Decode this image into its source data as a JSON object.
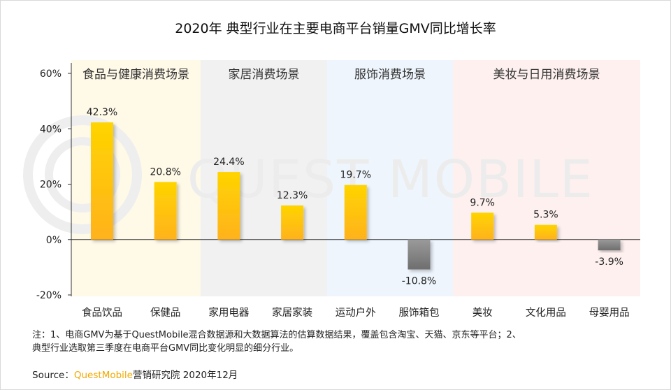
{
  "title": "2020年 典型行业在主要电商平台销量GMV同比增长率",
  "watermark": "QUEST MOBILE",
  "notes": [
    "注：1、电商GMV为基于QuestMobile混合数据源和大数据算法的估算数据结果，覆盖包含淘宝、天猫、京东等平台；2、",
    "典型行业选取第三季度在电商平台GMV同比变化明显的细分行业。"
  ],
  "source": {
    "prefix": "Source：",
    "brand": "QuestMobile",
    "suffix": "营销研究院 2020年12月"
  },
  "colors": {
    "positive_top": "#ffd400",
    "positive_bottom": "#ffb21c",
    "negative_top": "#9a9a9a",
    "negative_bottom": "#6e6e6e",
    "band_food": "#fff9e8",
    "band_home": "#f1f1f1",
    "band_apparel": "#eef5fd",
    "band_beauty": "#fdf0ef",
    "watermark": "#ececec"
  },
  "chart_data": {
    "type": "bar",
    "categories": [
      "食品饮品",
      "保健品",
      "家用电器",
      "家居家装",
      "运动户外",
      "服饰箱包",
      "美妆",
      "文化用品",
      "母婴用品"
    ],
    "values": [
      42.3,
      20.8,
      24.4,
      12.3,
      19.7,
      -10.8,
      9.7,
      5.3,
      -3.9
    ],
    "value_labels": [
      "42.3%",
      "20.8%",
      "24.4%",
      "12.3%",
      "19.7%",
      "-10.8%",
      "9.7%",
      "5.3%",
      "-3.9%"
    ],
    "ylim": [
      -20,
      60
    ],
    "yticks": [
      60,
      40,
      20,
      0,
      -20
    ],
    "ytick_labels": [
      "60%",
      "40%",
      "20%",
      "0%",
      "-20%"
    ],
    "groups": [
      {
        "label": "食品与健康消费场景",
        "start": 0,
        "end": 1,
        "color_key": "band_food"
      },
      {
        "label": "家居消费场景",
        "start": 2,
        "end": 3,
        "color_key": "band_home"
      },
      {
        "label": "服饰消费场景",
        "start": 4,
        "end": 5,
        "color_key": "band_apparel"
      },
      {
        "label": "美妆与日用消费场景",
        "start": 6,
        "end": 8,
        "color_key": "band_beauty"
      }
    ],
    "grid": false
  }
}
